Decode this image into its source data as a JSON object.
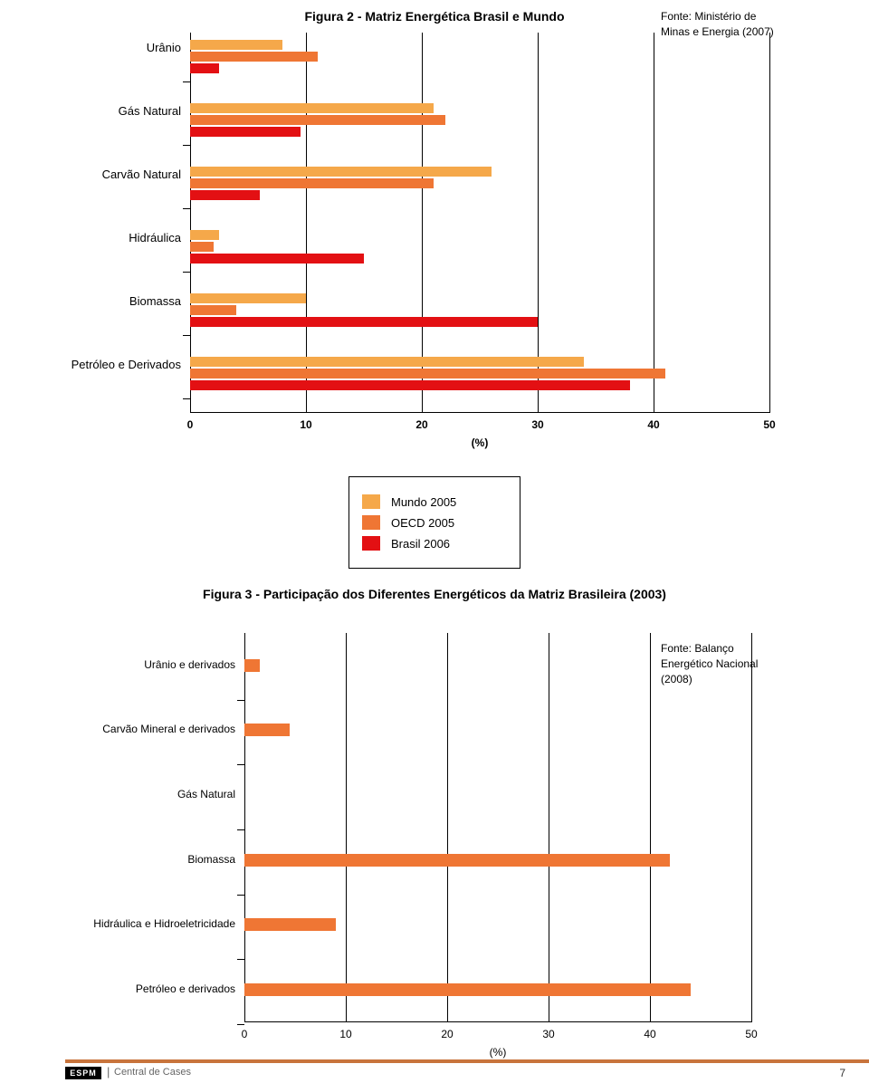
{
  "fig2": {
    "title": "Figura 2 - Matriz Energética Brasil e Mundo",
    "source": "Fonte: Ministério de Minas e Energia (2007)",
    "xmax": 50,
    "xticks": [
      0,
      10,
      20,
      30,
      40,
      50
    ],
    "xlabel": "(%)",
    "series": [
      {
        "label": "Mundo 2005",
        "color": "#f5a84a"
      },
      {
        "label": "OECD 2005",
        "color": "#ef7634"
      },
      {
        "label": "Brasil 2006",
        "color": "#e31013"
      }
    ],
    "categories": [
      {
        "label": "Urânio",
        "values": [
          8,
          11,
          2.5
        ]
      },
      {
        "label": "Gás Natural",
        "values": [
          21,
          22,
          9.5
        ]
      },
      {
        "label": "Carvão Natural",
        "values": [
          26,
          21,
          6
        ]
      },
      {
        "label": "Hidráulica",
        "values": [
          2.5,
          2,
          15
        ]
      },
      {
        "label": "Biomassa",
        "values": [
          10,
          4,
          30
        ]
      },
      {
        "label": "Petróleo e Derivados",
        "values": [
          34,
          41,
          38
        ]
      }
    ]
  },
  "fig3": {
    "title": "Figura 3 - Participação dos Diferentes Energéticos da Matriz Brasileira (2003)",
    "source": "Fonte: Balanço Energético Nacional (2008)",
    "xmax": 50,
    "xticks": [
      0,
      10,
      20,
      30,
      40,
      50
    ],
    "xlabel": "(%)",
    "bar_color": "#ef7634",
    "categories": [
      {
        "label": "Urânio e derivados",
        "value": 1.5
      },
      {
        "label": "Carvão Mineral e derivados",
        "value": 4.5
      },
      {
        "label": "Gás Natural",
        "value": 0
      },
      {
        "label": "Biomassa",
        "value": 42
      },
      {
        "label": "Hidráulica e Hidroeletricidade",
        "value": 9
      },
      {
        "label": "Petróleo e derivados",
        "value": 44
      }
    ]
  },
  "footer": {
    "logo": "ESPM",
    "text": "Central de Cases",
    "page": "7"
  }
}
